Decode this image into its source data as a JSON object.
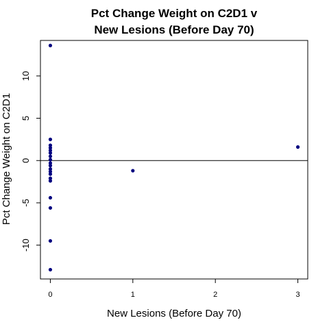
{
  "chart_data": {
    "type": "scatter",
    "title": [
      "Pct Change Weight on C2D1 v",
      "New Lesions (Before Day 70)"
    ],
    "xlabel": "New Lesions (Before Day 70)",
    "ylabel": "Pct Change Weight on C2D1",
    "xlim": [
      -0.12,
      3.12
    ],
    "ylim": [
      -14.0,
      14.2
    ],
    "xticks": [
      0,
      1,
      2,
      3
    ],
    "yticks": [
      -10,
      -5,
      0,
      5,
      10
    ],
    "grid": false,
    "legend": "none",
    "reference_line_y": 0,
    "point_color": "#00007F",
    "points": [
      {
        "x": 0,
        "y": 13.6
      },
      {
        "x": 0,
        "y": 2.5
      },
      {
        "x": 0,
        "y": 1.8
      },
      {
        "x": 0,
        "y": 1.5
      },
      {
        "x": 0,
        "y": 1.2
      },
      {
        "x": 0,
        "y": 0.9
      },
      {
        "x": 0,
        "y": 0.5
      },
      {
        "x": 0,
        "y": 0.1
      },
      {
        "x": 0,
        "y": -0.3
      },
      {
        "x": 0,
        "y": -0.6
      },
      {
        "x": 0,
        "y": -1.0
      },
      {
        "x": 0,
        "y": -1.3
      },
      {
        "x": 0,
        "y": -1.6
      },
      {
        "x": 0,
        "y": -2.1
      },
      {
        "x": 0,
        "y": -2.4
      },
      {
        "x": 0,
        "y": -4.4
      },
      {
        "x": 0,
        "y": -5.6
      },
      {
        "x": 0,
        "y": -9.5
      },
      {
        "x": 0,
        "y": -12.9
      },
      {
        "x": 1,
        "y": -1.2
      },
      {
        "x": 3,
        "y": 1.6
      }
    ]
  }
}
